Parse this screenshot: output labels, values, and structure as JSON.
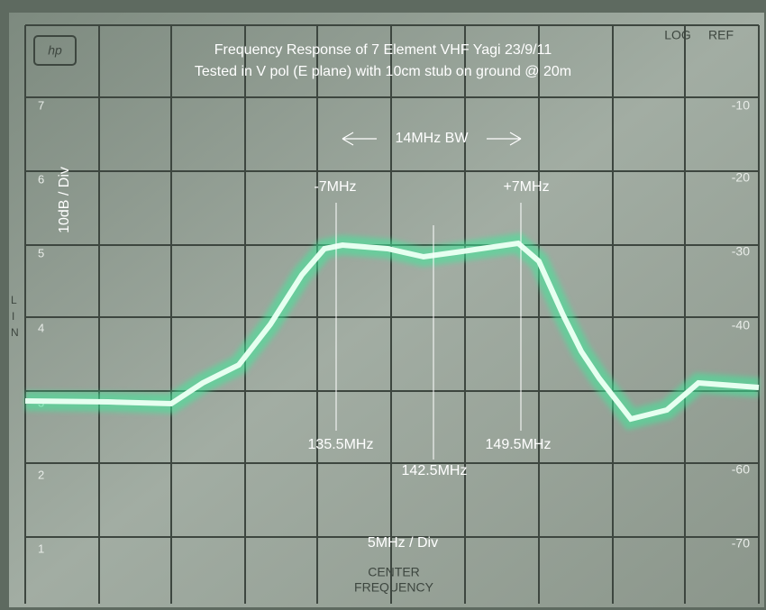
{
  "header": {
    "title": "Frequency Response of 7 Element VHF Yagi 23/9/11",
    "subtitle": "Tested in V pol (E plane) with 10cm stub on ground @ 20m"
  },
  "screen": {
    "logo": "hp",
    "log": "LOG",
    "ref": "REF",
    "left_scale": [
      "7",
      "6",
      "5",
      "4",
      "3",
      "2",
      "1"
    ],
    "right_scale": [
      "-10",
      "-20",
      "-30",
      "-40",
      "-60",
      "-70"
    ],
    "lin": [
      "L",
      "I",
      "N"
    ]
  },
  "annotations": {
    "vertical_scale": "10dB / Div",
    "bandwidth": "14MHz BW",
    "lower_offset": "-7MHz",
    "upper_offset": "+7MHz",
    "lower_freq": "135.5MHz",
    "upper_freq": "149.5MHz",
    "center_freq": "142.5MHz",
    "horizontal_scale": "5MHz / Div"
  },
  "footer": {
    "center": "CENTER",
    "frequency": "FREQUENCY"
  }
}
